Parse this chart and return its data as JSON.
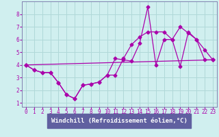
{
  "xlabel": "Windchill (Refroidissement éolien,°C)",
  "xlim": [
    -0.5,
    23.5
  ],
  "ylim": [
    0.7,
    9.0
  ],
  "xticks": [
    0,
    1,
    2,
    3,
    4,
    5,
    6,
    7,
    8,
    9,
    10,
    11,
    12,
    13,
    14,
    15,
    16,
    17,
    18,
    19,
    20,
    21,
    22,
    23
  ],
  "yticks": [
    1,
    2,
    3,
    4,
    5,
    6,
    7,
    8
  ],
  "bg_color": "#d0efef",
  "plot_bg": "#d0efef",
  "line_color": "#aa00aa",
  "grid_color": "#b0d8d8",
  "xlabel_bg": "#6060a0",
  "xlabel_fg": "#ffffff",
  "spine_color": "#8080b0",
  "line1_x": [
    0,
    1,
    2,
    3,
    4,
    5,
    6,
    7,
    8,
    9,
    10,
    11,
    12,
    13,
    14,
    15,
    16,
    17,
    18,
    19,
    20,
    21,
    22,
    23
  ],
  "line1_y": [
    4.0,
    3.6,
    3.4,
    3.4,
    2.6,
    1.65,
    1.35,
    2.4,
    2.5,
    2.65,
    3.2,
    4.5,
    4.4,
    4.3,
    5.7,
    8.55,
    4.0,
    6.0,
    6.0,
    3.9,
    6.6,
    6.0,
    5.2,
    4.4
  ],
  "line2_x": [
    0,
    1,
    2,
    3,
    4,
    5,
    6,
    7,
    8,
    9,
    10,
    11,
    12,
    13,
    14,
    15,
    16,
    17,
    18,
    19,
    20,
    21,
    22,
    23
  ],
  "line2_y": [
    4.0,
    3.6,
    3.4,
    3.4,
    2.6,
    1.65,
    1.35,
    2.4,
    2.5,
    2.65,
    3.2,
    3.2,
    4.5,
    5.6,
    6.2,
    6.6,
    6.6,
    6.6,
    6.0,
    7.0,
    6.5,
    6.0,
    4.4,
    4.4
  ],
  "line3_x": [
    0,
    23
  ],
  "line3_y": [
    4.0,
    4.4
  ],
  "markersize": 2.5,
  "linewidth": 0.9,
  "tick_fontsize": 5.5,
  "xlabel_fontsize": 6.5
}
